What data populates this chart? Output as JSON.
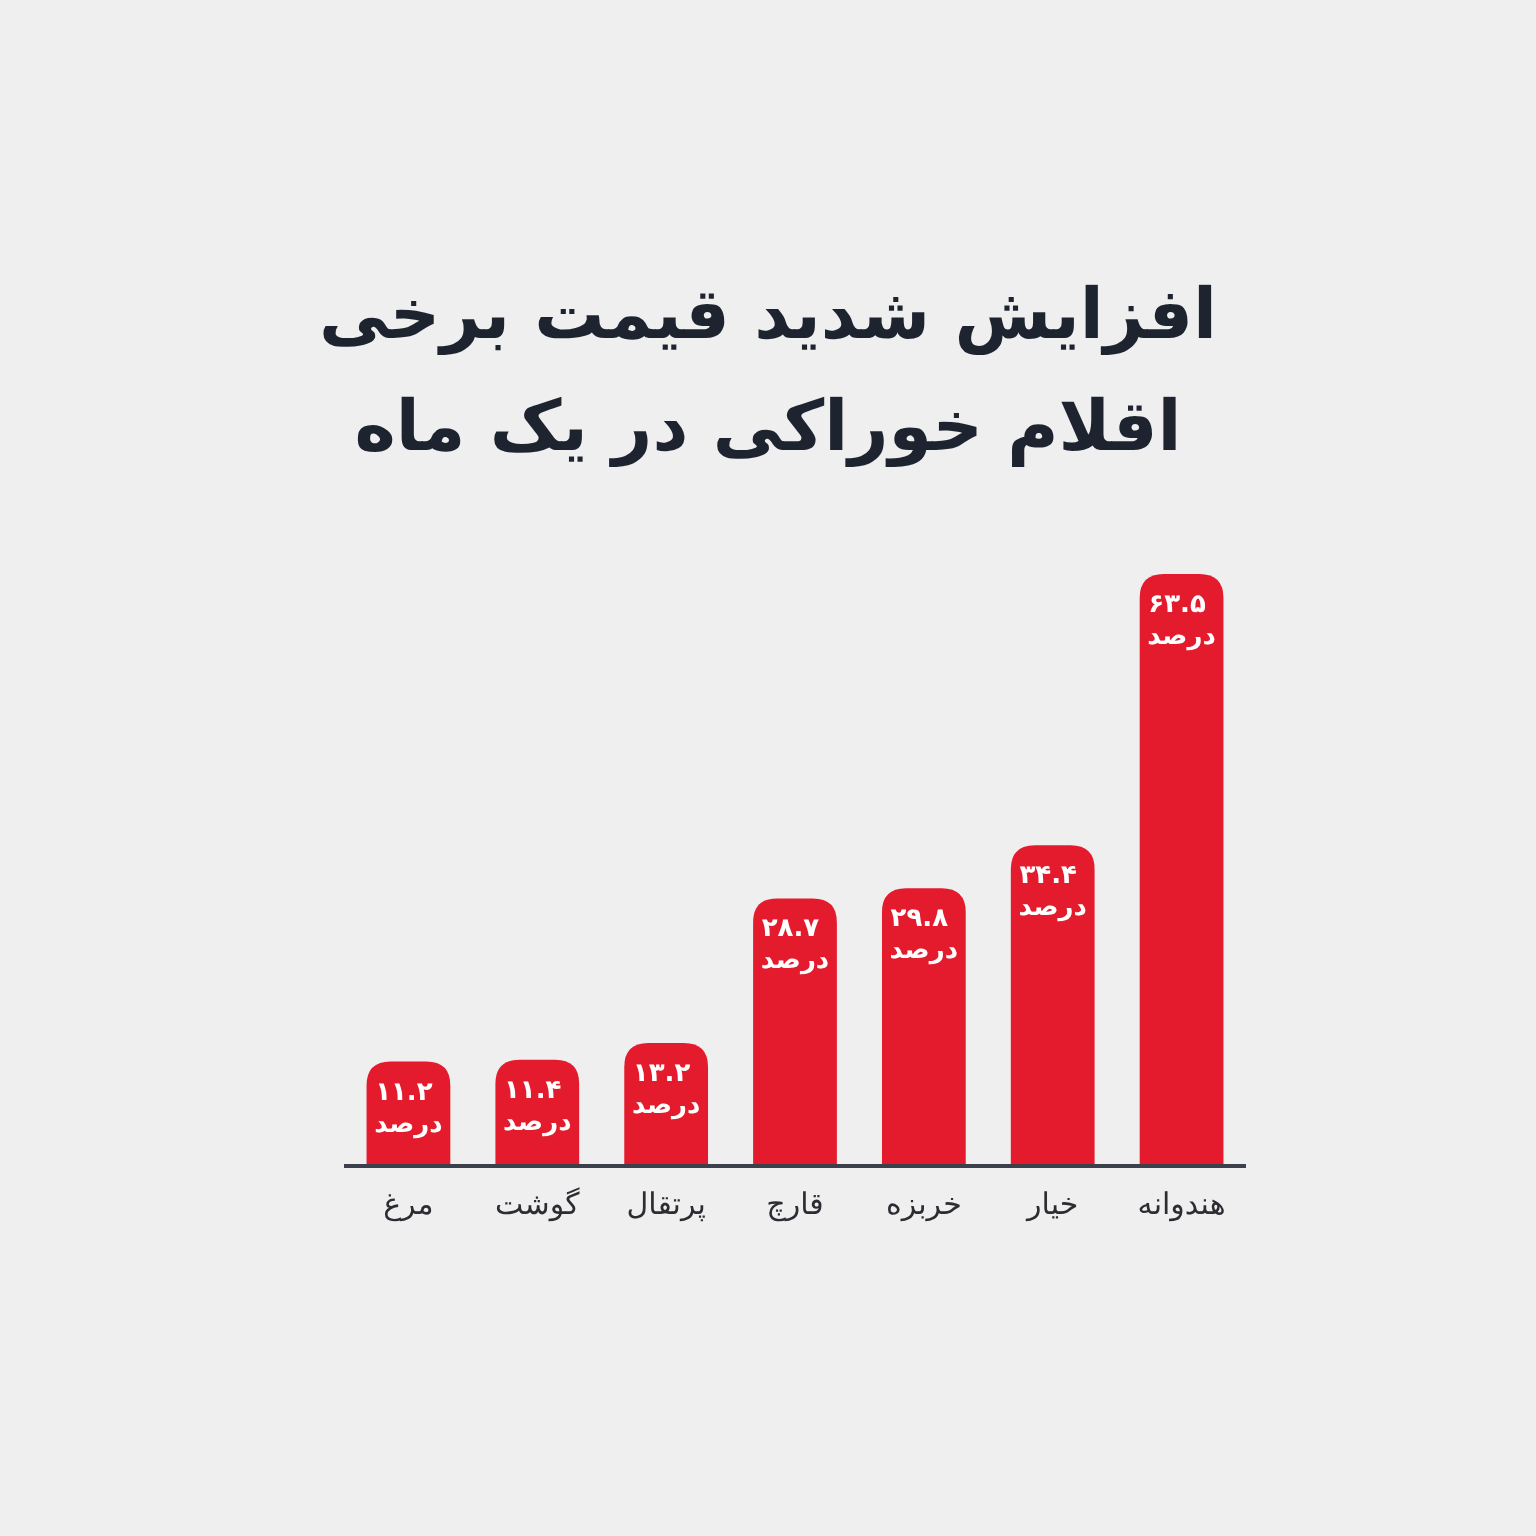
{
  "chart_data": {
    "type": "bar",
    "title": "افزایش شدید قیمت برخی اقلام خوراکی در یک ماه",
    "categories": [
      "مرغ",
      "گوشت",
      "پرتقال",
      "قارچ",
      "خربزه",
      "خیار",
      "هندوانه"
    ],
    "values": [
      11.2,
      11.4,
      13.2,
      28.7,
      29.8,
      34.4,
      63.5
    ],
    "color": "#e31b2d",
    "value_labels": [
      "۱۱.۲ درصد",
      "۱۱.۴ درصد",
      "۱۳.۲ درصد",
      "۲۸.۷ درصد",
      "۲۹.۸ درصد",
      "۳۴.۴ درصد",
      "۶۳.۵ درصد"
    ]
  }
}
